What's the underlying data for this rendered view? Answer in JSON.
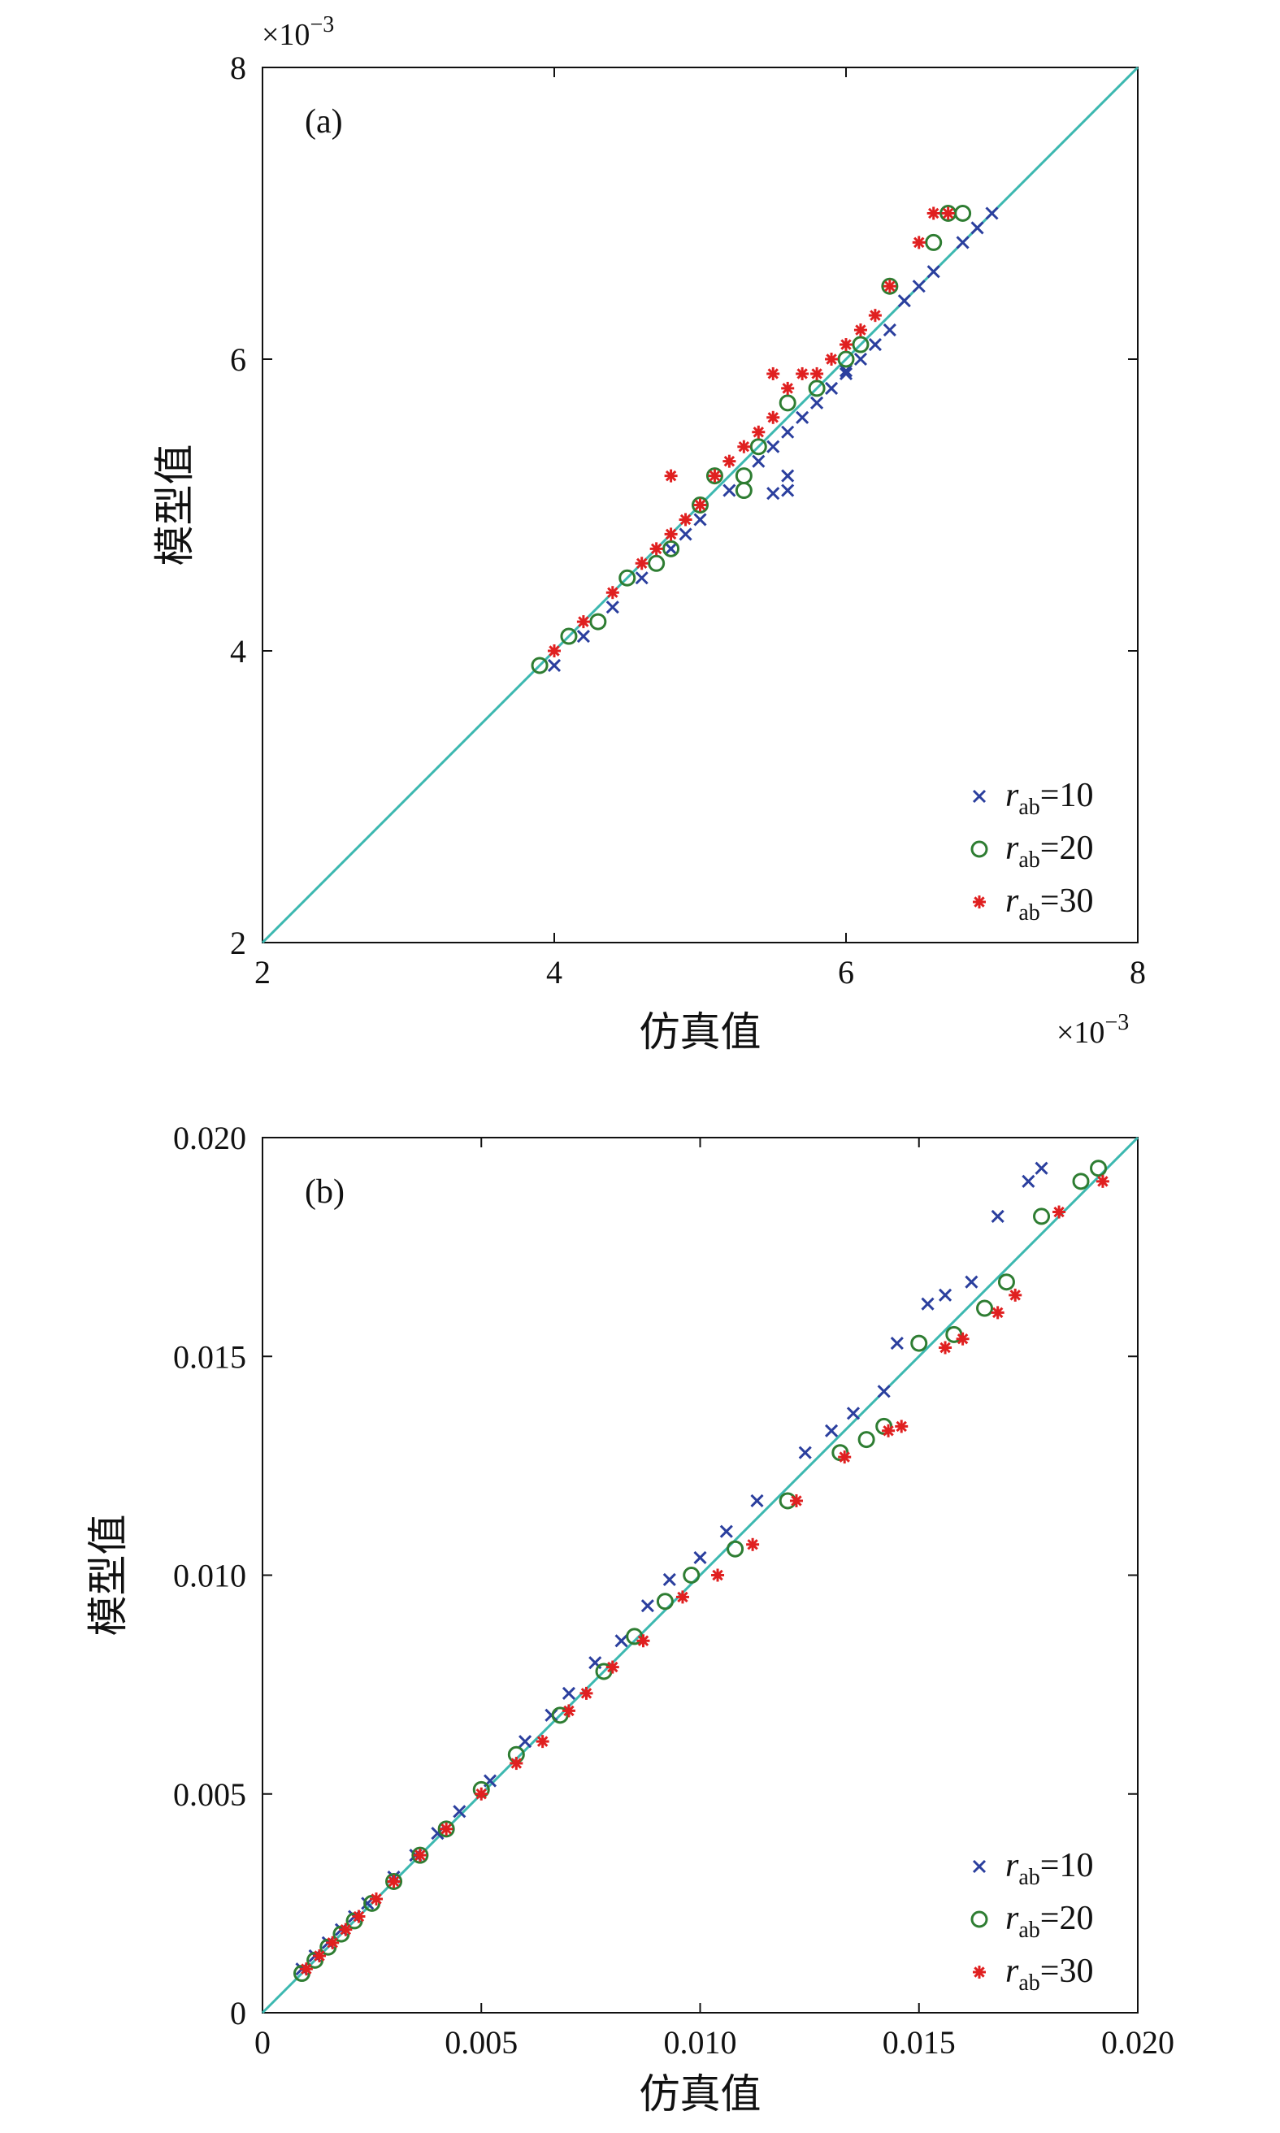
{
  "figure_title": "",
  "chart_data": [
    {
      "type": "scatter",
      "panel_label": "(a)",
      "xlabel": "仿真值",
      "ylabel": "模型值",
      "xlim": [
        0.002,
        0.008
      ],
      "ylim": [
        0.002,
        0.008
      ],
      "xticks": [
        0.002,
        0.004,
        0.006,
        0.008
      ],
      "yticks": [
        0.002,
        0.004,
        0.006,
        0.008
      ],
      "tick_labels": [
        "2",
        "4",
        "6",
        "8"
      ],
      "sci_base": "×10",
      "sci_exp": "−3",
      "reference_line": "y = x",
      "legend_position": "bottom-right",
      "legend_symbol": "r",
      "legend_subscript": "ab",
      "series": [
        {
          "name": "=10",
          "marker": "x",
          "color": "#2b3f9e",
          "x": [
            0.004,
            0.0042,
            0.0044,
            0.0046,
            0.0048,
            0.0049,
            0.005,
            0.0052,
            0.0054,
            0.0055,
            0.0056,
            0.0057,
            0.0058,
            0.0059,
            0.006,
            0.0061,
            0.0062,
            0.0063,
            0.0064,
            0.0065,
            0.0066,
            0.0068,
            0.0069,
            0.007,
            0.0056,
            0.0056,
            0.0055,
            0.006
          ],
          "y": [
            0.0039,
            0.0041,
            0.0043,
            0.0045,
            0.0047,
            0.0048,
            0.0049,
            0.0051,
            0.0053,
            0.0054,
            0.0055,
            0.0056,
            0.0057,
            0.0058,
            0.0059,
            0.006,
            0.0061,
            0.0062,
            0.0064,
            0.0065,
            0.0066,
            0.0068,
            0.0069,
            0.007,
            0.0052,
            0.0051,
            0.00508,
            0.00592
          ]
        },
        {
          "name": "=20",
          "marker": "o",
          "color": "#2e7d32",
          "x": [
            0.0039,
            0.0041,
            0.0043,
            0.0045,
            0.0047,
            0.0048,
            0.005,
            0.0051,
            0.0053,
            0.0054,
            0.0056,
            0.0058,
            0.006,
            0.0061,
            0.0063,
            0.0066,
            0.0067,
            0.0068,
            0.0053
          ],
          "y": [
            0.0039,
            0.0041,
            0.0042,
            0.0045,
            0.0046,
            0.0047,
            0.005,
            0.0052,
            0.0052,
            0.0054,
            0.0057,
            0.0058,
            0.006,
            0.0061,
            0.0065,
            0.0068,
            0.007,
            0.007,
            0.0051
          ]
        },
        {
          "name": "=30",
          "marker": "*",
          "color": "#e02020",
          "x": [
            0.004,
            0.0042,
            0.0044,
            0.0046,
            0.0047,
            0.0048,
            0.0049,
            0.005,
            0.0051,
            0.0052,
            0.0053,
            0.0054,
            0.0055,
            0.0056,
            0.0057,
            0.0058,
            0.0059,
            0.006,
            0.0061,
            0.0062,
            0.0063,
            0.0065,
            0.0066,
            0.0067,
            0.0048,
            0.0055
          ],
          "y": [
            0.004,
            0.0042,
            0.0044,
            0.0046,
            0.0047,
            0.0048,
            0.0049,
            0.005,
            0.0052,
            0.0053,
            0.0054,
            0.0055,
            0.0056,
            0.0058,
            0.0059,
            0.0059,
            0.006,
            0.0061,
            0.0062,
            0.0063,
            0.0065,
            0.0068,
            0.007,
            0.007,
            0.0052,
            0.0059
          ]
        }
      ]
    },
    {
      "type": "scatter",
      "panel_label": "(b)",
      "xlabel": "仿真值",
      "ylabel": "模型值",
      "xlim": [
        0,
        0.02
      ],
      "ylim": [
        0,
        0.02
      ],
      "xticks": [
        0,
        0.005,
        0.01,
        0.015,
        0.02
      ],
      "yticks": [
        0,
        0.005,
        0.01,
        0.015,
        0.02
      ],
      "tick_labels": [
        "0",
        "0.005",
        "0.010",
        "0.015",
        "0.020"
      ],
      "reference_line": "y = x",
      "legend_position": "bottom-right",
      "legend_symbol": "r",
      "legend_subscript": "ab",
      "series": [
        {
          "name": "=10",
          "marker": "x",
          "color": "#2b3f9e",
          "x": [
            0.0009,
            0.0012,
            0.0015,
            0.0018,
            0.0021,
            0.0024,
            0.003,
            0.0035,
            0.004,
            0.0045,
            0.0052,
            0.006,
            0.0066,
            0.007,
            0.0076,
            0.0082,
            0.0088,
            0.0093,
            0.01,
            0.0106,
            0.0113,
            0.0124,
            0.013,
            0.0135,
            0.0142,
            0.0145,
            0.0152,
            0.0156,
            0.0162,
            0.0168,
            0.0175,
            0.0178
          ],
          "y": [
            0.001,
            0.0013,
            0.0016,
            0.0019,
            0.0022,
            0.0025,
            0.0031,
            0.0036,
            0.0041,
            0.0046,
            0.0053,
            0.0062,
            0.0068,
            0.0073,
            0.008,
            0.0085,
            0.0093,
            0.0099,
            0.0104,
            0.011,
            0.0117,
            0.0128,
            0.0133,
            0.0137,
            0.0142,
            0.0153,
            0.0162,
            0.0164,
            0.0167,
            0.0182,
            0.019,
            0.0193
          ]
        },
        {
          "name": "=20",
          "marker": "o",
          "color": "#2e7d32",
          "x": [
            0.0009,
            0.0012,
            0.0015,
            0.0018,
            0.0021,
            0.0025,
            0.003,
            0.0036,
            0.0042,
            0.005,
            0.0058,
            0.0068,
            0.0078,
            0.0085,
            0.0092,
            0.0098,
            0.0108,
            0.012,
            0.0132,
            0.0138,
            0.0142,
            0.015,
            0.0158,
            0.0165,
            0.017,
            0.0178,
            0.0187,
            0.0191
          ],
          "y": [
            0.0009,
            0.0012,
            0.0015,
            0.0018,
            0.0021,
            0.0025,
            0.003,
            0.0036,
            0.0042,
            0.0051,
            0.0059,
            0.0068,
            0.0078,
            0.0086,
            0.0094,
            0.01,
            0.0106,
            0.0117,
            0.0128,
            0.0131,
            0.0134,
            0.0153,
            0.0155,
            0.0161,
            0.0167,
            0.0182,
            0.019,
            0.0193
          ]
        },
        {
          "name": "=30",
          "marker": "*",
          "color": "#e02020",
          "x": [
            0.001,
            0.0013,
            0.0016,
            0.0019,
            0.0022,
            0.0026,
            0.003,
            0.0036,
            0.0042,
            0.005,
            0.0058,
            0.0064,
            0.007,
            0.0074,
            0.008,
            0.0087,
            0.0096,
            0.0104,
            0.0112,
            0.0122,
            0.0133,
            0.0143,
            0.0146,
            0.0156,
            0.016,
            0.0168,
            0.0172,
            0.0182,
            0.0192
          ],
          "y": [
            0.001,
            0.0013,
            0.0016,
            0.0019,
            0.0022,
            0.0026,
            0.003,
            0.0036,
            0.0042,
            0.005,
            0.0057,
            0.0062,
            0.0069,
            0.0073,
            0.0079,
            0.0085,
            0.0095,
            0.01,
            0.0107,
            0.0117,
            0.0127,
            0.0133,
            0.0134,
            0.0152,
            0.0154,
            0.016,
            0.0164,
            0.0183,
            0.019
          ]
        }
      ]
    }
  ]
}
